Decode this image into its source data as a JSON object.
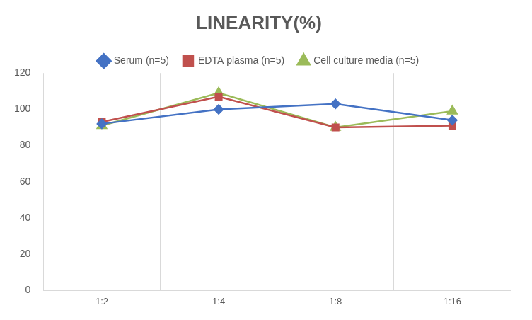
{
  "chart_data": {
    "type": "line",
    "title": "LINEARITY(%)",
    "categories": [
      "1:2",
      "1:4",
      "1:8",
      "1:16"
    ],
    "series": [
      {
        "name": "Serum (n=5)",
        "color": "#4472c4",
        "marker": "diamond",
        "values": [
          92,
          100,
          103,
          94
        ]
      },
      {
        "name": "EDTA plasma (n=5)",
        "color": "#c0504d",
        "marker": "square",
        "values": [
          93,
          107,
          90,
          91
        ]
      },
      {
        "name": "Cell culture media (n=5)",
        "color": "#9bbb59",
        "marker": "triangle",
        "values": [
          91,
          109,
          90,
          99
        ]
      }
    ],
    "ylim": [
      0,
      120
    ],
    "yticks": [
      0,
      20,
      40,
      60,
      80,
      100,
      120
    ],
    "grid": true,
    "legend": "top"
  }
}
